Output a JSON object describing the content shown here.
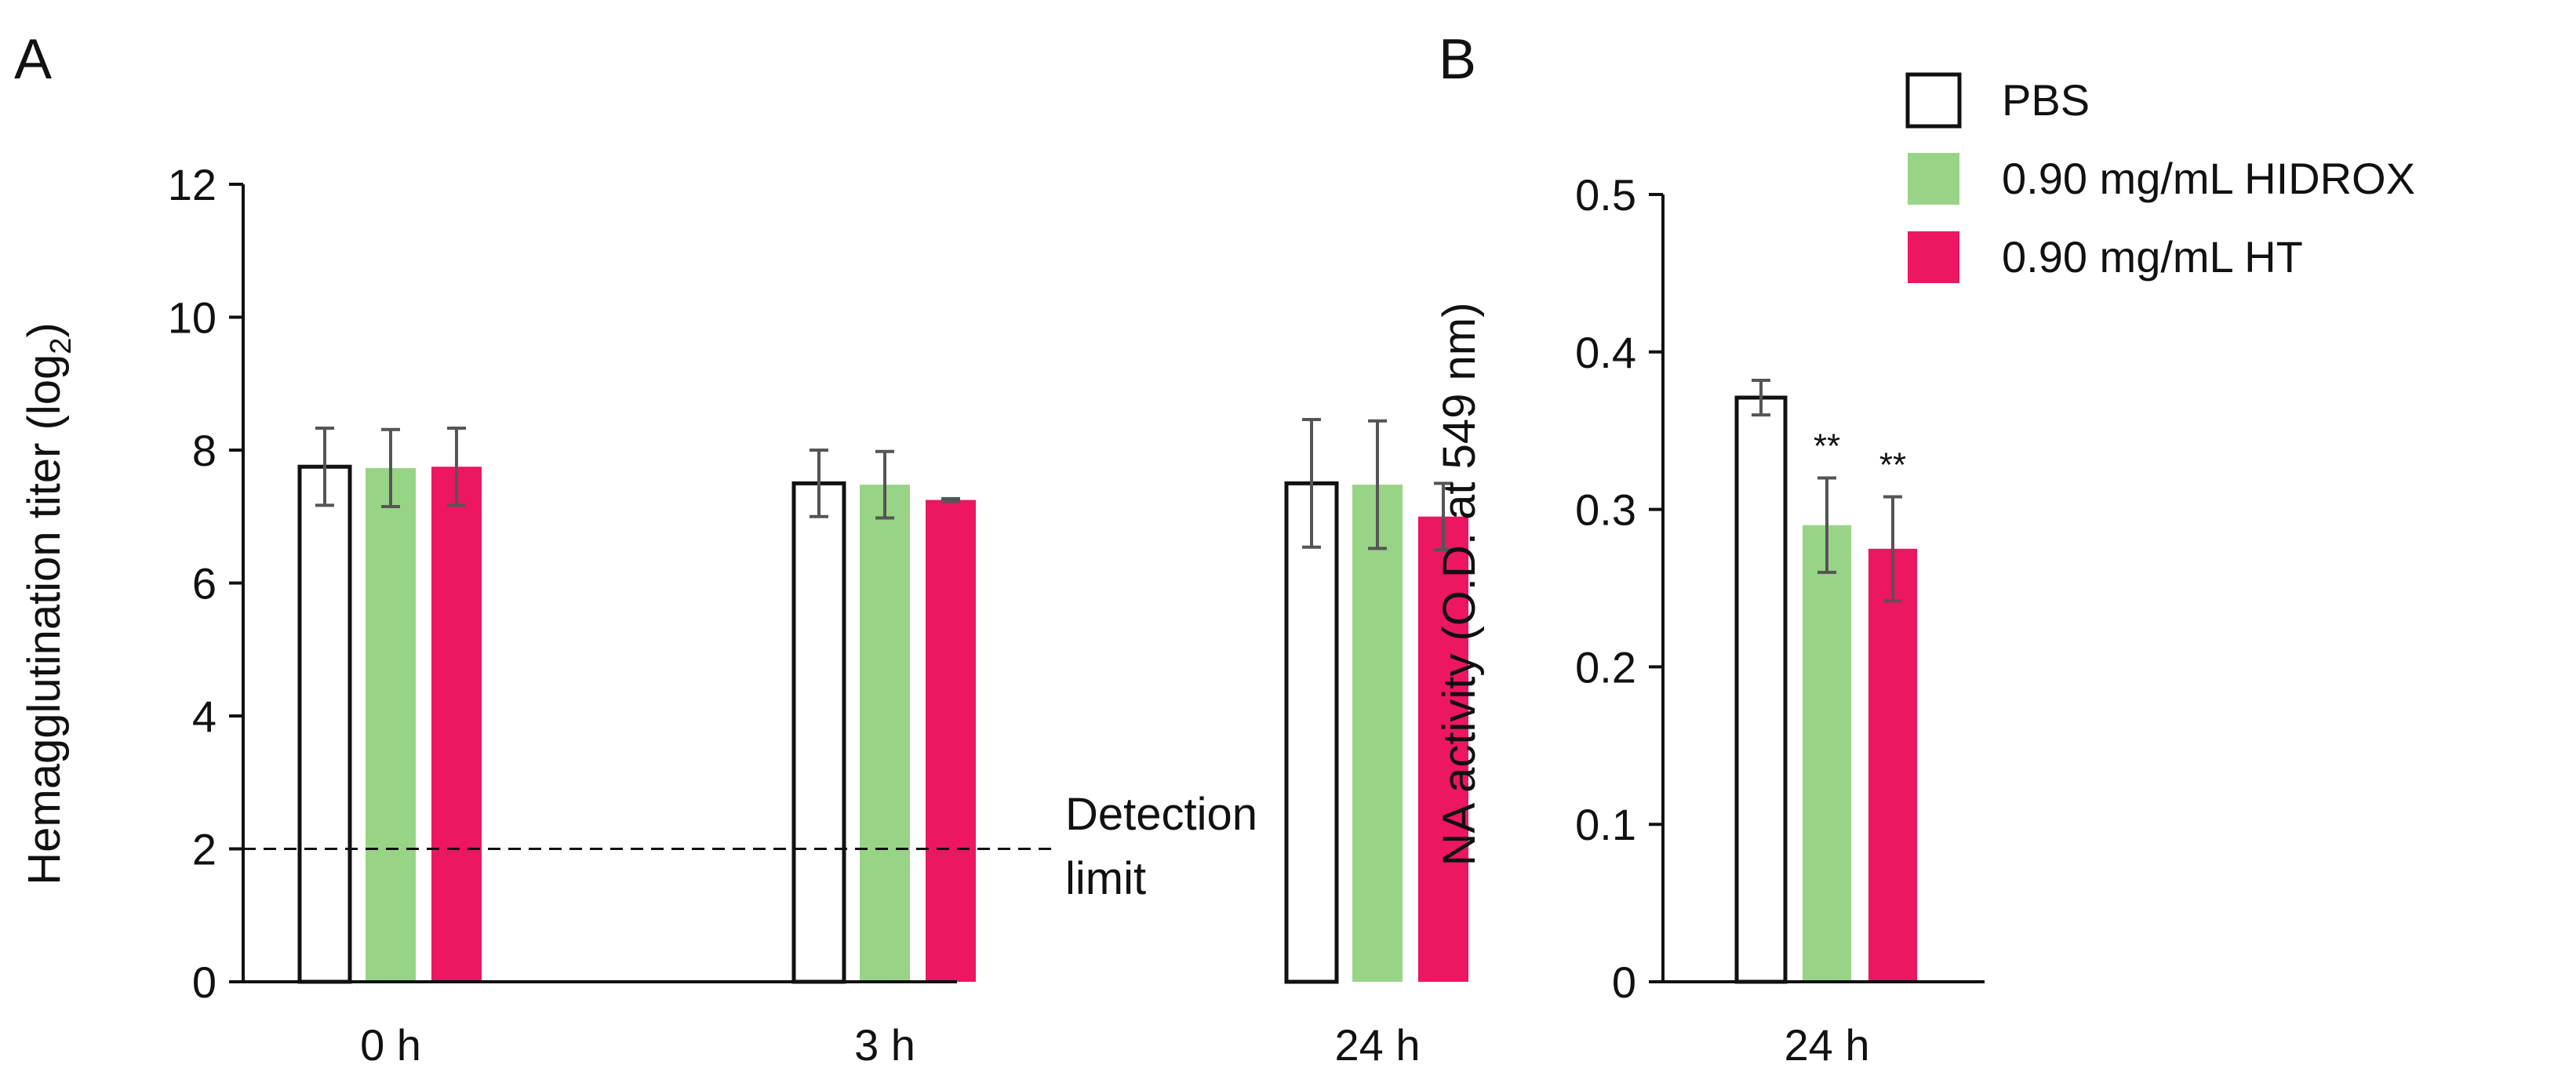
{
  "chart_data": [
    {
      "panel": "A",
      "type": "bar",
      "categories": [
        "0 h",
        "3 h",
        "24 h"
      ],
      "series": [
        {
          "name": "PBS",
          "color": "#ffffff",
          "values": [
            7.75,
            7.5,
            7.5
          ],
          "errors": [
            0.58,
            0.5,
            0.96
          ]
        },
        {
          "name": "0.90 mg/mL HIDROX",
          "color": "#98d486",
          "values": [
            7.73,
            7.48,
            7.48
          ],
          "errors": [
            0.58,
            0.5,
            0.96
          ]
        },
        {
          "name": "0.90 mg/mL HT",
          "color": "#ec1662",
          "values": [
            7.75,
            7.25,
            7.0
          ],
          "errors": [
            0.58,
            0.02,
            0.5
          ]
        }
      ],
      "ylabel_main": "Hemagglutination titer (log",
      "ylabel_sub": "2",
      "ylabel_close": ")",
      "ylim": [
        0,
        12
      ],
      "yticks": [
        "0",
        "2",
        "4",
        "6",
        "8",
        "10",
        "12"
      ],
      "detection_limit": 2,
      "annotation_line1": "Detection",
      "annotation_line2": "limit"
    },
    {
      "panel": "B",
      "type": "bar",
      "categories": [
        "24 h"
      ],
      "series": [
        {
          "name": "PBS",
          "color": "#ffffff",
          "values": [
            0.371
          ],
          "errors": [
            0.011
          ],
          "sig": ""
        },
        {
          "name": "0.90 mg/mL HIDROX",
          "color": "#98d486",
          "values": [
            0.29
          ],
          "errors": [
            0.03
          ],
          "sig": "**"
        },
        {
          "name": "0.90 mg/mL HT",
          "color": "#ec1662",
          "values": [
            0.275
          ],
          "errors": [
            0.033
          ],
          "sig": "**"
        }
      ],
      "ylabel": "NA activity (O.D. at 549 nm)",
      "ylim": [
        0,
        0.5
      ],
      "yticks": [
        "0",
        "0.1",
        "0.2",
        "0.3",
        "0.4",
        "0.5"
      ]
    }
  ],
  "legend": [
    "PBS",
    "0.90 mg/mL HIDROX",
    "0.90 mg/mL HT"
  ]
}
